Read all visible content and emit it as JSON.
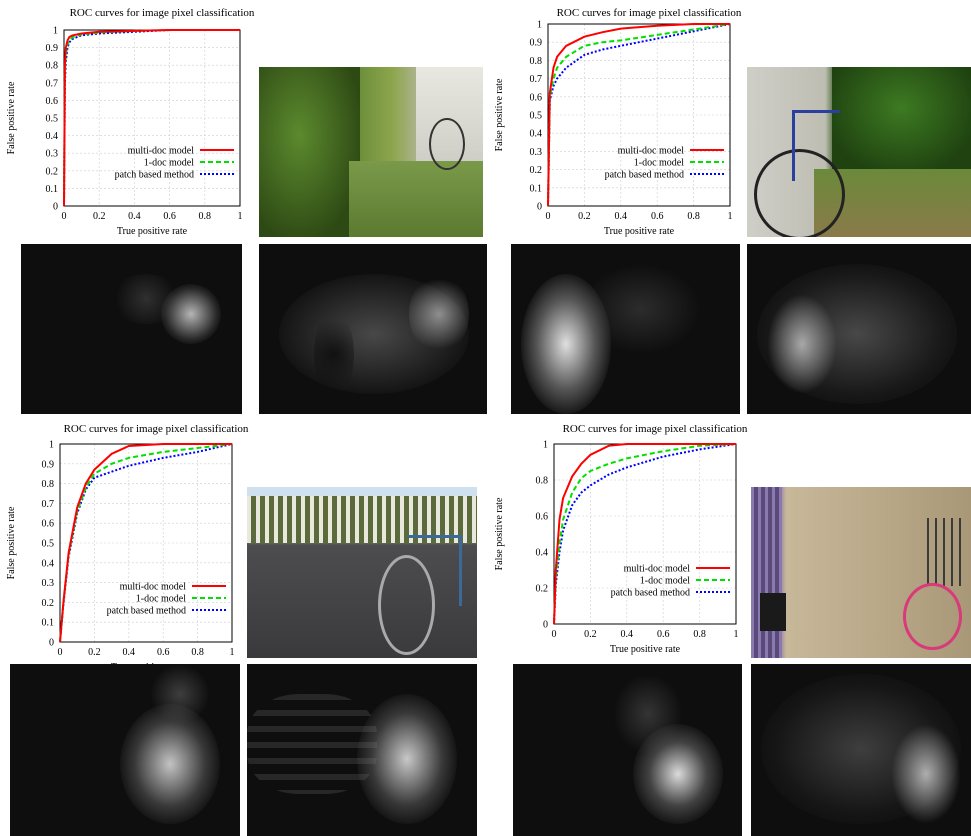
{
  "colors": {
    "multi_doc": "#ff0000",
    "one_doc": "#00e000",
    "patch": "#0000ff"
  },
  "panels": [
    {
      "photo": "hedge-path-bicycle-photo",
      "heat_left": "saliency-heatmap",
      "heat_right": "saliency-heatmap"
    },
    {
      "photo": "bicycle-by-hedge-photo",
      "heat_left": "saliency-heatmap",
      "heat_right": "saliency-heatmap"
    },
    {
      "photo": "bicycle-by-fence-photo",
      "heat_left": "saliency-heatmap",
      "heat_right": "saliency-heatmap"
    },
    {
      "photo": "pink-bicycle-by-wall-photo",
      "heat_left": "saliency-heatmap",
      "heat_right": "saliency-heatmap"
    }
  ],
  "chart_data": [
    {
      "type": "line",
      "title": "ROC curves for image pixel classification",
      "xlabel": "True positive rate",
      "ylabel": "False positive rate",
      "xlim": [
        0,
        1
      ],
      "ylim": [
        0,
        1
      ],
      "xticks": [
        "0",
        "0.2",
        "0.4",
        "0.6",
        "0.8",
        "1"
      ],
      "yticks": [
        "0",
        "0.1",
        "0.2",
        "0.3",
        "0.4",
        "0.5",
        "0.6",
        "0.7",
        "0.8",
        "0.9",
        "1"
      ],
      "grid": true,
      "legend": "bottom-right",
      "series": [
        {
          "name": "multi-doc model",
          "style": "solid",
          "color": "#ff0000",
          "x": [
            0,
            0.005,
            0.01,
            0.02,
            0.03,
            0.05,
            0.1,
            0.2,
            0.4,
            0.6,
            1.0
          ],
          "y": [
            0,
            0.8,
            0.9,
            0.94,
            0.96,
            0.97,
            0.98,
            0.99,
            0.995,
            1.0,
            1.0
          ]
        },
        {
          "name": "1-doc model",
          "style": "dashed",
          "color": "#00e000",
          "x": [
            0,
            0.005,
            0.01,
            0.02,
            0.03,
            0.05,
            0.1,
            0.2,
            0.4,
            0.6,
            1.0
          ],
          "y": [
            0,
            0.75,
            0.86,
            0.92,
            0.94,
            0.96,
            0.975,
            0.985,
            0.995,
            1.0,
            1.0
          ]
        },
        {
          "name": "patch based method",
          "style": "dotted",
          "color": "#0000ff",
          "x": [
            0,
            0.005,
            0.01,
            0.02,
            0.03,
            0.05,
            0.1,
            0.2,
            0.4,
            0.6,
            1.0
          ],
          "y": [
            0,
            0.7,
            0.82,
            0.9,
            0.93,
            0.95,
            0.97,
            0.98,
            0.99,
            1.0,
            1.0
          ]
        }
      ]
    },
    {
      "type": "line",
      "title": "ROC curves for image pixel classification",
      "xlabel": "True positive rate",
      "ylabel": "False positive rate",
      "xlim": [
        0,
        1
      ],
      "ylim": [
        0,
        1
      ],
      "xticks": [
        "0",
        "0.2",
        "0.4",
        "0.6",
        "0.8",
        "1"
      ],
      "yticks": [
        "0",
        "0.1",
        "0.2",
        "0.3",
        "0.4",
        "0.5",
        "0.6",
        "0.7",
        "0.8",
        "0.9",
        "1"
      ],
      "grid": true,
      "legend": "bottom-right",
      "series": [
        {
          "name": "multi-doc model",
          "style": "solid",
          "color": "#ff0000",
          "x": [
            0,
            0.01,
            0.03,
            0.05,
            0.1,
            0.2,
            0.3,
            0.4,
            0.6,
            0.8,
            1.0
          ],
          "y": [
            0,
            0.62,
            0.76,
            0.82,
            0.88,
            0.93,
            0.955,
            0.975,
            0.99,
            1.0,
            1.0
          ]
        },
        {
          "name": "1-doc model",
          "style": "dashed",
          "color": "#00e000",
          "x": [
            0,
            0.01,
            0.03,
            0.05,
            0.1,
            0.2,
            0.3,
            0.4,
            0.6,
            0.8,
            1.0
          ],
          "y": [
            0,
            0.6,
            0.7,
            0.76,
            0.82,
            0.88,
            0.9,
            0.91,
            0.94,
            0.97,
            1.0
          ]
        },
        {
          "name": "patch based method",
          "style": "dotted",
          "color": "#0000ff",
          "x": [
            0,
            0.01,
            0.03,
            0.05,
            0.1,
            0.2,
            0.3,
            0.4,
            0.6,
            0.8,
            1.0
          ],
          "y": [
            0,
            0.58,
            0.66,
            0.7,
            0.76,
            0.83,
            0.86,
            0.88,
            0.92,
            0.96,
            1.0
          ]
        }
      ]
    },
    {
      "type": "line",
      "title": "ROC curves for image pixel classification",
      "xlabel": "True positive rate",
      "ylabel": "False positive rate",
      "xlim": [
        0,
        1
      ],
      "ylim": [
        0,
        1
      ],
      "xticks": [
        "0",
        "0.2",
        "0.4",
        "0.6",
        "0.8",
        "1"
      ],
      "yticks": [
        "0",
        "0.1",
        "0.2",
        "0.3",
        "0.4",
        "0.5",
        "0.6",
        "0.7",
        "0.8",
        "0.9",
        "1"
      ],
      "grid": true,
      "legend": "bottom-right",
      "series": [
        {
          "name": "multi-doc model",
          "style": "solid",
          "color": "#ff0000",
          "x": [
            0,
            0.02,
            0.05,
            0.1,
            0.15,
            0.2,
            0.3,
            0.4,
            0.6,
            0.8,
            1.0
          ],
          "y": [
            0,
            0.2,
            0.45,
            0.68,
            0.8,
            0.87,
            0.95,
            0.99,
            1.0,
            1.0,
            1.0
          ]
        },
        {
          "name": "1-doc model",
          "style": "dashed",
          "color": "#00e000",
          "x": [
            0,
            0.02,
            0.05,
            0.1,
            0.15,
            0.2,
            0.3,
            0.4,
            0.6,
            0.8,
            1.0
          ],
          "y": [
            0,
            0.2,
            0.44,
            0.66,
            0.78,
            0.85,
            0.9,
            0.93,
            0.96,
            0.98,
            1.0
          ]
        },
        {
          "name": "patch based method",
          "style": "dotted",
          "color": "#0000ff",
          "x": [
            0,
            0.02,
            0.05,
            0.1,
            0.15,
            0.2,
            0.3,
            0.4,
            0.6,
            0.8,
            1.0
          ],
          "y": [
            0,
            0.19,
            0.43,
            0.65,
            0.77,
            0.83,
            0.86,
            0.89,
            0.93,
            0.96,
            1.0
          ]
        }
      ]
    },
    {
      "type": "line",
      "title": "ROC curves for image pixel classification",
      "xlabel": "True positive rate",
      "ylabel": "False positive rate",
      "xlim": [
        0,
        1
      ],
      "ylim": [
        0,
        1
      ],
      "xticks": [
        "0",
        "0.2",
        "0.4",
        "0.6",
        "0.8",
        "1"
      ],
      "yticks": [
        "0",
        "0.2",
        "0.4",
        "0.6",
        "0.8",
        "1"
      ],
      "grid": true,
      "legend": "bottom-right",
      "series": [
        {
          "name": "multi-doc model",
          "style": "solid",
          "color": "#ff0000",
          "x": [
            0,
            0.01,
            0.03,
            0.05,
            0.1,
            0.15,
            0.2,
            0.3,
            0.4,
            0.6,
            1.0
          ],
          "y": [
            0,
            0.3,
            0.58,
            0.7,
            0.82,
            0.89,
            0.94,
            0.99,
            1.0,
            1.0,
            1.0
          ]
        },
        {
          "name": "1-doc model",
          "style": "dashed",
          "color": "#00e000",
          "x": [
            0,
            0.01,
            0.03,
            0.05,
            0.1,
            0.15,
            0.2,
            0.3,
            0.4,
            0.6,
            0.8,
            1.0
          ],
          "y": [
            0,
            0.25,
            0.45,
            0.58,
            0.73,
            0.81,
            0.85,
            0.89,
            0.92,
            0.96,
            0.99,
            1.0
          ]
        },
        {
          "name": "patch based method",
          "style": "dotted",
          "color": "#0000ff",
          "x": [
            0,
            0.01,
            0.03,
            0.05,
            0.1,
            0.15,
            0.2,
            0.3,
            0.4,
            0.6,
            0.8,
            1.0
          ],
          "y": [
            0,
            0.22,
            0.4,
            0.52,
            0.66,
            0.73,
            0.77,
            0.83,
            0.87,
            0.93,
            0.97,
            1.0
          ]
        }
      ]
    }
  ]
}
